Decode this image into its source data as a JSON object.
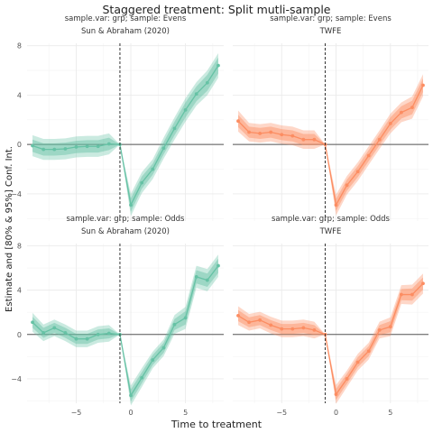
{
  "title": "Staggered treatment: Split mutli-sample",
  "xlabel": "Time to treatment",
  "ylabel": "Estimate and [80% & 95%] Conf. Int.",
  "colors": {
    "sunab": "#66c2a5",
    "twfe": "#fc8d62",
    "zero_line": "#555555",
    "vline": "#333333",
    "grid": "#ebebeb"
  },
  "chart_data": [
    {
      "type": "line",
      "strip_top": "sample.var: grp; sample: Evens",
      "strip_sub": "Sun & Abraham (2020)",
      "color_key": "sunab",
      "xlim": [
        -9.5,
        8.5
      ],
      "ylim": [
        -6.2,
        8.2
      ],
      "xticks": [
        -5,
        0,
        5
      ],
      "yticks": [
        -4,
        0,
        4,
        8
      ],
      "vline_x": -1,
      "zero_line": 0,
      "x": [
        -9,
        -8,
        -7,
        -6,
        -5,
        -4,
        -3,
        -2,
        -1,
        0,
        1,
        2,
        3,
        4,
        5,
        6,
        7,
        8
      ],
      "estimate": [
        -0.1,
        -0.4,
        -0.4,
        -0.35,
        -0.2,
        -0.15,
        -0.15,
        0.05,
        0,
        -4.9,
        -3.1,
        -2.0,
        -0.3,
        1.3,
        2.8,
        4.1,
        5.0,
        6.4
      ],
      "ci80": [
        0.5,
        0.5,
        0.5,
        0.5,
        0.5,
        0.5,
        0.5,
        0.5,
        0,
        0.55,
        0.5,
        0.45,
        0.5,
        0.55,
        0.6,
        0.6,
        0.65,
        0.65
      ],
      "ci95": [
        0.85,
        0.85,
        0.85,
        0.85,
        0.85,
        0.85,
        0.85,
        0.85,
        0,
        0.9,
        0.85,
        0.8,
        0.85,
        0.9,
        0.95,
        0.95,
        1.0,
        1.0
      ]
    },
    {
      "type": "line",
      "strip_top": "sample.var: grp; sample: Evens",
      "strip_sub": "TWFE",
      "color_key": "twfe",
      "xlim": [
        -9.5,
        8.5
      ],
      "ylim": [
        -6.2,
        8.2
      ],
      "xticks": [
        -5,
        0,
        5
      ],
      "yticks": [
        -4,
        0,
        4,
        8
      ],
      "vline_x": -1,
      "zero_line": 0,
      "x": [
        -9,
        -8,
        -7,
        -6,
        -5,
        -4,
        -3,
        -2,
        -1,
        0,
        1,
        2,
        3,
        4,
        5,
        6,
        7,
        8
      ],
      "estimate": [
        1.9,
        1.0,
        0.9,
        1.0,
        0.8,
        0.7,
        0.4,
        0.4,
        0,
        -4.9,
        -3.3,
        -2.2,
        -0.9,
        0.4,
        1.7,
        2.6,
        3.0,
        4.8
      ],
      "ci80": [
        0.5,
        0.45,
        0.45,
        0.45,
        0.45,
        0.45,
        0.45,
        0.45,
        0,
        0.5,
        0.45,
        0.45,
        0.45,
        0.45,
        0.5,
        0.5,
        0.55,
        0.55
      ],
      "ci95": [
        0.85,
        0.75,
        0.75,
        0.75,
        0.75,
        0.75,
        0.75,
        0.75,
        0,
        0.85,
        0.75,
        0.75,
        0.75,
        0.75,
        0.8,
        0.8,
        0.9,
        0.9
      ]
    },
    {
      "type": "line",
      "strip_top": "sample.var: grp; sample: Odds",
      "strip_sub": "Sun & Abraham (2020)",
      "color_key": "sunab",
      "xlim": [
        -9.5,
        8.5
      ],
      "ylim": [
        -6.2,
        8.2
      ],
      "xticks": [
        -5,
        0,
        5
      ],
      "yticks": [
        -4,
        0,
        4,
        8
      ],
      "vline_x": -1,
      "zero_line": 0,
      "x": [
        -9,
        -8,
        -7,
        -6,
        -5,
        -4,
        -3,
        -2,
        -1,
        0,
        1,
        2,
        3,
        4,
        5,
        6,
        7,
        8
      ],
      "estimate": [
        1.1,
        0.15,
        0.6,
        0.15,
        -0.4,
        -0.4,
        0.0,
        0.1,
        0,
        -5.5,
        -3.9,
        -2.3,
        -1.2,
        0.9,
        1.5,
        5.2,
        4.9,
        6.2
      ],
      "ci80": [
        0.5,
        0.45,
        0.45,
        0.45,
        0.45,
        0.45,
        0.45,
        0.45,
        0,
        0.55,
        0.5,
        0.45,
        0.45,
        0.5,
        0.6,
        0.6,
        0.6,
        0.65
      ],
      "ci95": [
        0.85,
        0.75,
        0.75,
        0.75,
        0.75,
        0.75,
        0.75,
        0.75,
        0,
        0.9,
        0.85,
        0.75,
        0.75,
        0.85,
        1.0,
        1.0,
        1.0,
        1.0
      ]
    },
    {
      "type": "line",
      "strip_top": "sample.var: grp; sample: Odds",
      "strip_sub": "TWFE",
      "color_key": "twfe",
      "xlim": [
        -9.5,
        8.5
      ],
      "ylim": [
        -6.2,
        8.2
      ],
      "xticks": [
        -5,
        0,
        5
      ],
      "yticks": [
        -4,
        0,
        4,
        8
      ],
      "vline_x": -1,
      "zero_line": 0,
      "x": [
        -9,
        -8,
        -7,
        -6,
        -5,
        -4,
        -3,
        -2,
        -1,
        0,
        1,
        2,
        3,
        4,
        5,
        6,
        7,
        8
      ],
      "estimate": [
        1.7,
        1.1,
        1.3,
        0.85,
        0.5,
        0.5,
        0.6,
        0.4,
        0,
        -5.4,
        -4.0,
        -2.5,
        -1.5,
        0.4,
        0.7,
        3.6,
        3.6,
        4.6
      ],
      "ci80": [
        0.5,
        0.45,
        0.45,
        0.45,
        0.45,
        0.45,
        0.45,
        0.45,
        0,
        0.5,
        0.45,
        0.45,
        0.45,
        0.45,
        0.5,
        0.5,
        0.55,
        0.55
      ],
      "ci95": [
        0.85,
        0.75,
        0.75,
        0.75,
        0.75,
        0.75,
        0.75,
        0.75,
        0,
        0.85,
        0.75,
        0.75,
        0.75,
        0.75,
        0.85,
        0.85,
        0.9,
        0.9
      ]
    }
  ]
}
